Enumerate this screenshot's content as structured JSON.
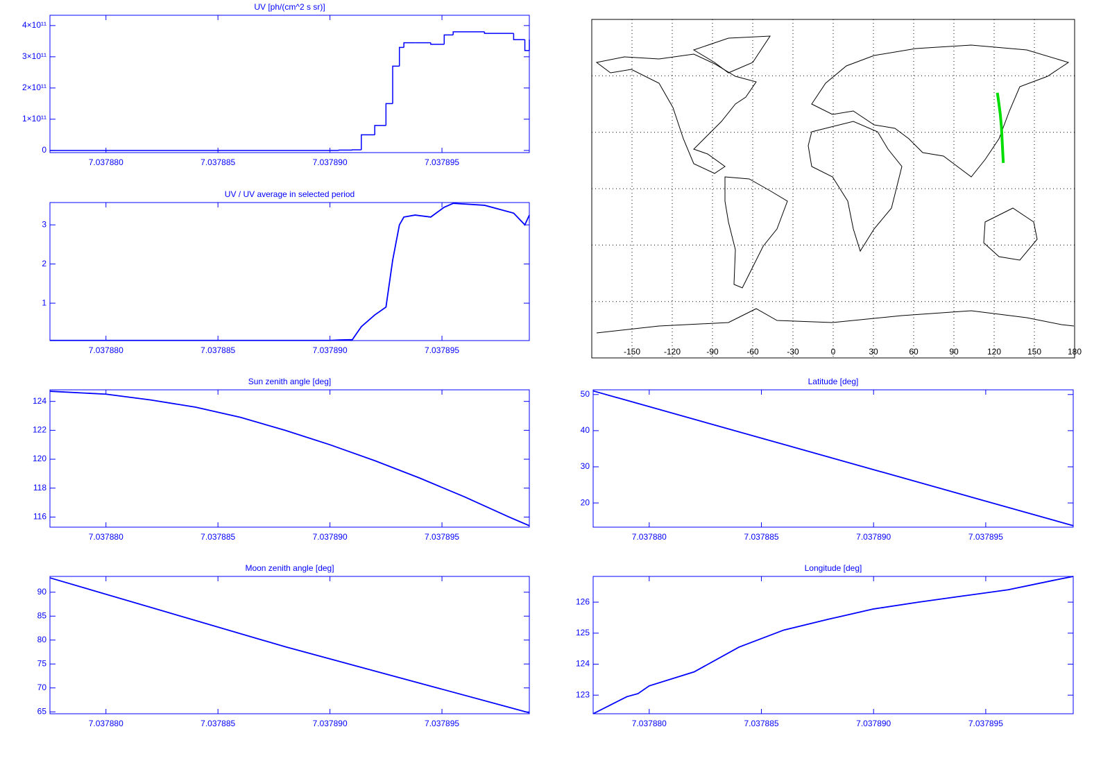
{
  "chart_data": [
    {
      "type": "line",
      "title": "UV [ph/(cm^2 s sr)]",
      "color": "#0000ff",
      "step": true,
      "x": [
        7.0378775,
        7.03789,
        7.0378904,
        7.037891,
        7.0378914,
        7.037892,
        7.0378925,
        7.0378928,
        7.0378931,
        7.0378933,
        7.0378938,
        7.0378945,
        7.0378951,
        7.0378955,
        7.0378969,
        7.0378982,
        7.0378987,
        7.0378989
      ],
      "values": [
        0,
        0,
        1000000000.0,
        2000000000.0,
        50000000000.0,
        80000000000.0,
        150000000000.0,
        270000000000.0,
        330000000000.0,
        345000000000.0,
        345000000000.0,
        340000000000.0,
        370000000000.0,
        380000000000.0,
        375000000000.0,
        355000000000.0,
        320000000000.0,
        355000000000.0
      ],
      "xlim": [
        7.0378775,
        7.0378989
      ],
      "ylim": [
        -7000000000.0,
        433000000000.0
      ],
      "xticks": [
        {
          "value": 7.03788,
          "label": "7.037880"
        },
        {
          "value": 7.037885,
          "label": "7.037885"
        },
        {
          "value": 7.03789,
          "label": "7.037890"
        },
        {
          "value": 7.037895,
          "label": "7.037895"
        }
      ],
      "yticks": [
        0,
        {
          "value": 100000000000.0,
          "label": "1×10¹¹"
        },
        {
          "value": 200000000000.0,
          "label": "2×10¹¹"
        },
        {
          "value": 300000000000.0,
          "label": "3×10¹¹"
        },
        {
          "value": 400000000000.0,
          "label": "4×10¹¹"
        }
      ]
    },
    {
      "type": "line",
      "title": "UV / UV average in selected period",
      "color": "#0000ff",
      "x": [
        7.0378775,
        7.03789,
        7.0378904,
        7.037891,
        7.0378914,
        7.037892,
        7.0378925,
        7.0378928,
        7.0378931,
        7.0378933,
        7.0378938,
        7.0378945,
        7.0378951,
        7.0378955,
        7.0378969,
        7.0378982,
        7.0378987,
        7.0378989
      ],
      "values": [
        0.05,
        0.05,
        0.06,
        0.07,
        0.4,
        0.7,
        0.9,
        2.1,
        3.0,
        3.2,
        3.25,
        3.2,
        3.45,
        3.55,
        3.5,
        3.3,
        3.0,
        3.25
      ],
      "xlim": [
        7.0378775,
        7.0378989
      ],
      "ylim": [
        0.045,
        3.57
      ],
      "xticks": [
        {
          "value": 7.03788,
          "label": "7.037880"
        },
        {
          "value": 7.037885,
          "label": "7.037885"
        },
        {
          "value": 7.03789,
          "label": "7.037890"
        },
        {
          "value": 7.037895,
          "label": "7.037895"
        }
      ],
      "yticks": [
        1,
        2,
        3
      ]
    },
    {
      "type": "map",
      "xlim": [
        -180,
        180
      ],
      "ylim": [
        -90,
        90
      ],
      "grid": true,
      "xticks": [
        -150,
        -120,
        -90,
        -60,
        -30,
        0,
        30,
        60,
        90,
        120,
        150,
        180
      ],
      "track": {
        "color": "#00dd00",
        "x": [
          122.4,
          123.3,
          124.55,
          125.45,
          126.2,
          126.83
        ],
        "values": [
          51,
          46.6,
          39.8,
          32.7,
          22.3,
          13.7
        ]
      }
    },
    {
      "type": "line",
      "title": "Sun zenith angle [deg]",
      "color": "#0000ff",
      "x": [
        7.0378775,
        7.03788,
        7.037882,
        7.037884,
        7.037886,
        7.037888,
        7.03789,
        7.037892,
        7.037894,
        7.037896,
        7.037898,
        7.0378989
      ],
      "values": [
        124.7,
        124.5,
        124.1,
        123.6,
        122.9,
        122.0,
        121.0,
        119.9,
        118.7,
        117.4,
        116.0,
        115.4
      ],
      "xlim": [
        7.0378775,
        7.0378989
      ],
      "ylim": [
        115.3,
        124.8
      ],
      "xticks": [
        {
          "value": 7.03788,
          "label": "7.037880"
        },
        {
          "value": 7.037885,
          "label": "7.037885"
        },
        {
          "value": 7.03789,
          "label": "7.037890"
        },
        {
          "value": 7.037895,
          "label": "7.037895"
        }
      ],
      "yticks": [
        116,
        118,
        120,
        122,
        124
      ]
    },
    {
      "type": "line",
      "title": "Latitude [deg]",
      "color": "#0000ff",
      "x": [
        7.0378775,
        7.0378989
      ],
      "values": [
        51.0,
        13.7
      ],
      "xlim": [
        7.0378775,
        7.0378989
      ],
      "ylim": [
        13.3,
        51.3
      ],
      "xticks": [
        {
          "value": 7.03788,
          "label": "7.037880"
        },
        {
          "value": 7.037885,
          "label": "7.037885"
        },
        {
          "value": 7.03789,
          "label": "7.037890"
        },
        {
          "value": 7.037895,
          "label": "7.037895"
        }
      ],
      "yticks": [
        20,
        30,
        40,
        50
      ]
    },
    {
      "type": "line",
      "title": "Moon zenith angle [deg]",
      "color": "#0000ff",
      "x": [
        7.0378775,
        7.037888,
        7.0378989
      ],
      "values": [
        93.0,
        78.6,
        64.8
      ],
      "xlim": [
        7.0378775,
        7.0378989
      ],
      "ylim": [
        64.6,
        93.3
      ],
      "xticks": [
        {
          "value": 7.03788,
          "label": "7.037880"
        },
        {
          "value": 7.037885,
          "label": "7.037885"
        },
        {
          "value": 7.03789,
          "label": "7.037890"
        },
        {
          "value": 7.037895,
          "label": "7.037895"
        }
      ],
      "yticks": [
        65,
        70,
        75,
        80,
        85,
        90
      ]
    },
    {
      "type": "line",
      "title": "Longitude [deg]",
      "color": "#0000ff",
      "x": [
        7.0378775,
        7.037879,
        7.0378795,
        7.03788,
        7.037882,
        7.037884,
        7.037886,
        7.037888,
        7.03789,
        7.037892,
        7.037894,
        7.037896,
        7.037898,
        7.0378989
      ],
      "values": [
        122.4,
        122.95,
        123.05,
        123.3,
        123.75,
        124.55,
        125.1,
        125.45,
        125.78,
        126.0,
        126.2,
        126.4,
        126.7,
        126.83
      ],
      "xlim": [
        7.0378775,
        7.0378989
      ],
      "ylim": [
        122.4,
        126.83
      ],
      "xticks": [
        {
          "value": 7.03788,
          "label": "7.037880"
        },
        {
          "value": 7.037885,
          "label": "7.037885"
        },
        {
          "value": 7.03789,
          "label": "7.037890"
        },
        {
          "value": 7.037895,
          "label": "7.037895"
        }
      ],
      "yticks": [
        123,
        124,
        125,
        126
      ]
    }
  ]
}
